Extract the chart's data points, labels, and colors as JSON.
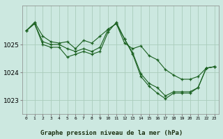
{
  "title": "Graphe pression niveau de la mer (hPa)",
  "bg_color": "#cce8e0",
  "grid_color": "#aaccbb",
  "line_color": "#1a6020",
  "ylim": [
    1022.5,
    1026.4
  ],
  "yticks": [
    1023,
    1024,
    1025
  ],
  "series": [
    [
      1025.5,
      1025.8,
      1025.3,
      1025.1,
      1025.05,
      1025.1,
      1024.85,
      1025.15,
      1025.05,
      1025.3,
      1025.55,
      1025.75,
      1025.05,
      1024.85,
      1024.95,
      1024.6,
      1024.45,
      1024.1,
      1023.9,
      1023.75,
      1023.75,
      1023.85,
      1024.15,
      1024.2
    ],
    [
      1025.5,
      1025.75,
      1025.1,
      1025.0,
      1025.0,
      1024.85,
      1024.75,
      1024.85,
      1024.75,
      1024.9,
      1025.55,
      1025.75,
      1025.2,
      1024.7,
      1023.95,
      1023.6,
      1023.45,
      1023.15,
      1023.3,
      1023.3,
      1023.3,
      1023.45,
      1024.15,
      1024.2
    ],
    [
      1025.5,
      1025.75,
      1025.0,
      1024.9,
      1024.9,
      1024.55,
      1024.65,
      1024.75,
      1024.65,
      1024.75,
      1025.45,
      1025.8,
      1025.2,
      1024.65,
      1023.85,
      1023.5,
      1023.25,
      1023.05,
      1023.25,
      1023.25,
      1023.25,
      1023.45,
      1024.15,
      1024.2
    ]
  ]
}
